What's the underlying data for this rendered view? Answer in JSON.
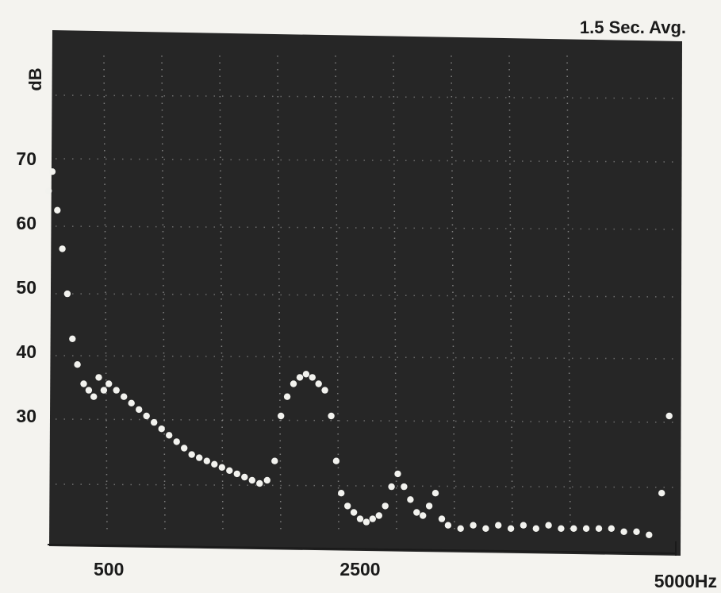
{
  "chart_data": {
    "type": "scatter",
    "title": "1.5 Sec. Avg.",
    "ylabel": "dB",
    "xlabel": "",
    "y_ticks": [
      {
        "value": 70,
        "label": "70"
      },
      {
        "value": 60,
        "label": "60"
      },
      {
        "value": 50,
        "label": "50"
      },
      {
        "value": 40,
        "label": "40"
      },
      {
        "value": 30,
        "label": "30"
      }
    ],
    "x_ticks": [
      {
        "value": 500,
        "label": "500"
      },
      {
        "value": 2500,
        "label": "2500"
      },
      {
        "value": 5000,
        "label": "5000Hz"
      }
    ],
    "xlim": [
      0,
      5000
    ],
    "ylim": [
      10,
      85
    ],
    "grid": "dotted",
    "colors": {
      "screen": "#262626",
      "trace": "#f2f2ee",
      "grid": "#9c9c9c",
      "paper": "#f4f3ef"
    },
    "series": [
      {
        "points": [
          [
            20,
            65
          ],
          [
            50,
            68
          ],
          [
            90,
            62
          ],
          [
            130,
            56
          ],
          [
            170,
            49
          ],
          [
            210,
            42
          ],
          [
            250,
            38
          ],
          [
            300,
            35
          ],
          [
            340,
            34
          ],
          [
            380,
            33
          ],
          [
            420,
            36
          ],
          [
            460,
            34
          ],
          [
            500,
            35
          ],
          [
            560,
            34
          ],
          [
            620,
            33
          ],
          [
            680,
            32
          ],
          [
            740,
            31
          ],
          [
            800,
            30
          ],
          [
            860,
            29
          ],
          [
            920,
            28
          ],
          [
            980,
            27
          ],
          [
            1040,
            26
          ],
          [
            1100,
            25
          ],
          [
            1160,
            24
          ],
          [
            1220,
            23.5
          ],
          [
            1280,
            23
          ],
          [
            1340,
            22.5
          ],
          [
            1400,
            22
          ],
          [
            1460,
            21.5
          ],
          [
            1520,
            21
          ],
          [
            1580,
            20.5
          ],
          [
            1640,
            20
          ],
          [
            1700,
            19.5
          ],
          [
            1760,
            20
          ],
          [
            1820,
            23
          ],
          [
            1870,
            30
          ],
          [
            1920,
            33
          ],
          [
            1970,
            35
          ],
          [
            2020,
            36
          ],
          [
            2070,
            36.5
          ],
          [
            2120,
            36
          ],
          [
            2170,
            35
          ],
          [
            2220,
            34
          ],
          [
            2270,
            30
          ],
          [
            2310,
            23
          ],
          [
            2350,
            18
          ],
          [
            2400,
            16
          ],
          [
            2450,
            15
          ],
          [
            2500,
            14
          ],
          [
            2550,
            13.5
          ],
          [
            2600,
            14
          ],
          [
            2650,
            14.5
          ],
          [
            2700,
            16
          ],
          [
            2750,
            19
          ],
          [
            2800,
            21
          ],
          [
            2850,
            19
          ],
          [
            2900,
            17
          ],
          [
            2950,
            15
          ],
          [
            3000,
            14.5
          ],
          [
            3050,
            16
          ],
          [
            3100,
            18
          ],
          [
            3150,
            14
          ],
          [
            3200,
            13
          ],
          [
            3300,
            12.5
          ],
          [
            3400,
            13
          ],
          [
            3500,
            12.5
          ],
          [
            3600,
            13
          ],
          [
            3700,
            12.5
          ],
          [
            3800,
            13
          ],
          [
            3900,
            12.5
          ],
          [
            4000,
            13
          ],
          [
            4100,
            12.5
          ],
          [
            4200,
            12.5
          ],
          [
            4300,
            12.5
          ],
          [
            4400,
            12.5
          ],
          [
            4500,
            12.5
          ],
          [
            4600,
            12
          ],
          [
            4700,
            12
          ],
          [
            4800,
            11.5
          ],
          [
            4900,
            18
          ],
          [
            4960,
            30
          ]
        ]
      }
    ]
  }
}
